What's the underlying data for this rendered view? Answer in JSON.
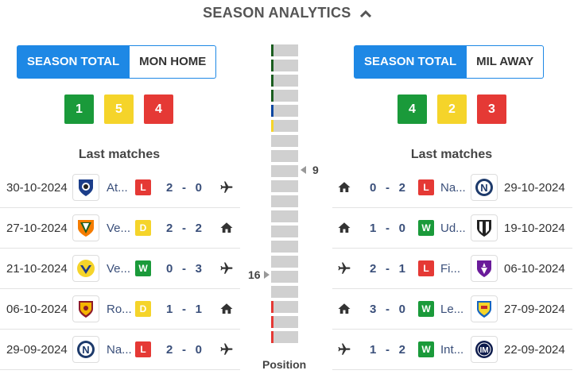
{
  "header": {
    "title": "SEASON ANALYTICS",
    "icon": "chevron-up-icon"
  },
  "colors": {
    "accent": "#1e88e5",
    "win": "#1a9a3a",
    "draw": "#f5d42a",
    "loss": "#e53935"
  },
  "home": {
    "toggle": {
      "active": "SEASON TOTAL",
      "inactive": "MON HOME"
    },
    "stats": {
      "wins": "1",
      "draws": "5",
      "losses": "4"
    },
    "last_title": "Last matches",
    "matches": [
      {
        "date": "30-10-2024",
        "team": "At...",
        "crest": "atalanta-crest-icon",
        "result": "L",
        "score_a": "2",
        "score_b": "0",
        "venue": "plane-icon"
      },
      {
        "date": "27-10-2024",
        "team": "Ve...",
        "crest": "venezia-crest-icon",
        "result": "D",
        "score_a": "2",
        "score_b": "2",
        "venue": "home-icon"
      },
      {
        "date": "21-10-2024",
        "team": "Ve...",
        "crest": "verona-crest-icon",
        "result": "W",
        "score_a": "0",
        "score_b": "3",
        "venue": "plane-icon"
      },
      {
        "date": "06-10-2024",
        "team": "Ro...",
        "crest": "roma-crest-icon",
        "result": "D",
        "score_a": "1",
        "score_b": "1",
        "venue": "home-icon"
      },
      {
        "date": "29-09-2024",
        "team": "Na...",
        "crest": "napoli-crest-icon",
        "result": "L",
        "score_a": "2",
        "score_b": "0",
        "venue": "plane-icon"
      }
    ]
  },
  "away": {
    "toggle": {
      "active": "SEASON TOTAL",
      "inactive": "MIL AWAY"
    },
    "stats": {
      "wins": "4",
      "draws": "2",
      "losses": "3"
    },
    "last_title": "Last matches",
    "matches": [
      {
        "date": "29-10-2024",
        "team": "Na...",
        "crest": "napoli-crest-icon",
        "result": "L",
        "score_a": "0",
        "score_b": "2",
        "venue": "home-icon"
      },
      {
        "date": "19-10-2024",
        "team": "Ud...",
        "crest": "udinese-crest-icon",
        "result": "W",
        "score_a": "1",
        "score_b": "0",
        "venue": "home-icon"
      },
      {
        "date": "06-10-2024",
        "team": "Fi...",
        "crest": "fiorentina-crest-icon",
        "result": "L",
        "score_a": "2",
        "score_b": "1",
        "venue": "plane-icon"
      },
      {
        "date": "27-09-2024",
        "team": "Le...",
        "crest": "lecce-crest-icon",
        "result": "W",
        "score_a": "3",
        "score_b": "0",
        "venue": "home-icon"
      },
      {
        "date": "22-09-2024",
        "team": "Int...",
        "crest": "inter-crest-icon",
        "result": "W",
        "score_a": "1",
        "score_b": "2",
        "venue": "plane-icon"
      }
    ]
  },
  "position": {
    "label": "Position",
    "mil_position": "9",
    "mon_position": "16",
    "zone_colors": [
      "#1b5e20",
      "#1b5e20",
      "#1b5e20",
      "#1b5e20",
      "#0d47a1",
      "#f5d42a",
      "",
      "",
      "",
      "",
      "",
      "",
      "",
      "",
      "",
      "",
      "",
      "#e53935",
      "#e53935",
      "#e53935"
    ]
  }
}
